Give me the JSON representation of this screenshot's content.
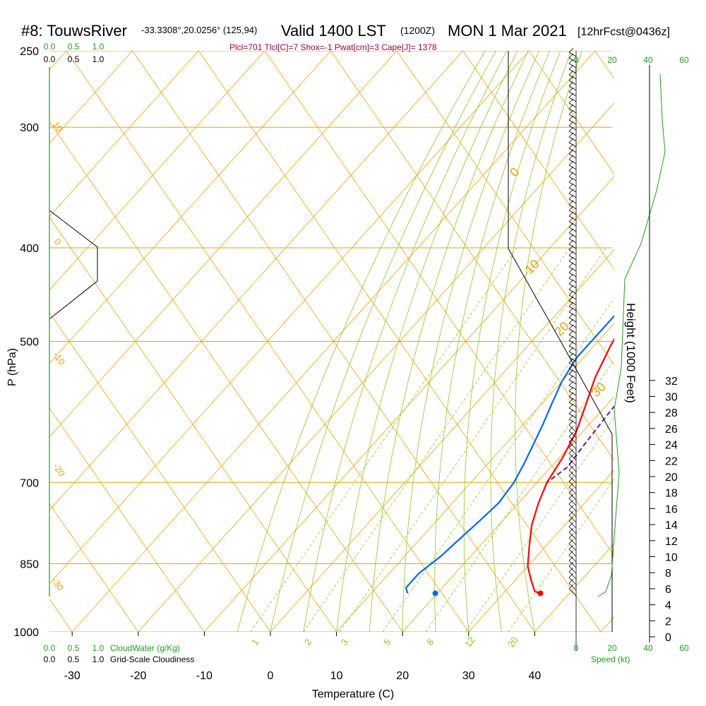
{
  "header": {
    "title_station": "#8: TouwsRiver",
    "coords": "-33.3308°,20.0256° (125,94)",
    "valid": "Valid 1400 LST",
    "zulu": "(1200Z)",
    "date": "MON 1 Mar 2021",
    "forecast": "[12hrFcst@0436z]",
    "params": "Plcl=701 Tlcl[C]=7 Shox=-1 Pwat[cm]=3 Cape[J]= 1378"
  },
  "labels": {
    "cloudwater": "CloudWater (g/Kg)",
    "cloudiness": "Grid-Scale Cloudiness",
    "speed": "Speed (kt)"
  },
  "chart_data": {
    "type": "line",
    "title": "",
    "xlabel": "Temperature (C)",
    "ylabel": "P (hPa)",
    "y2label": "Height (1000 Feet)",
    "xlim": [
      -35,
      52
    ],
    "x_ticks": [
      "-30",
      "-20",
      "-10",
      "0",
      "10",
      "20",
      "30",
      "40"
    ],
    "p_ticks": [
      "250",
      "300",
      "400",
      "500",
      "700",
      "850",
      "1000"
    ],
    "height_ticks": [
      "0",
      "2",
      "4",
      "6",
      "8",
      "10",
      "12",
      "14",
      "16",
      "18",
      "20",
      "22",
      "24",
      "26",
      "28",
      "30",
      "32"
    ],
    "cw_ticks": [
      "0.0",
      "0.5",
      "1.0"
    ],
    "cloud_ticks": [
      "0.0",
      "0.5",
      "1.0"
    ],
    "speed_ticks": [
      "0",
      "20",
      "40",
      "60"
    ],
    "mixing_ratio_labels": [
      "1",
      "2",
      "3",
      "5",
      "8",
      "12",
      "20"
    ],
    "isotherm_labels": [
      "0",
      "10",
      "20",
      "30",
      "10",
      "0",
      "-10",
      "-20",
      "-30"
    ],
    "series": [
      {
        "name": "Temperature",
        "color": "#ff0000",
        "points": [
          [
            1.5,
            266
          ],
          [
            1,
            290
          ],
          [
            1.5,
            310
          ],
          [
            3,
            335
          ],
          [
            5,
            360
          ],
          [
            6.5,
            385
          ],
          [
            8,
            410
          ],
          [
            9.5,
            440
          ],
          [
            11,
            470
          ],
          [
            12.5,
            505
          ],
          [
            14.5,
            545
          ],
          [
            17,
            585
          ],
          [
            19,
            620
          ],
          [
            20.5,
            660
          ],
          [
            21.5,
            700
          ],
          [
            23,
            735
          ],
          [
            25,
            775
          ],
          [
            27.5,
            815
          ],
          [
            30,
            855
          ],
          [
            32.5,
            885
          ],
          [
            34.5,
            908
          ],
          [
            35.5,
            912
          ]
        ]
      },
      {
        "name": "Dewpoint",
        "color": "#0066ff",
        "points": [
          [
            -14.5,
            264
          ],
          [
            -8,
            283
          ],
          [
            -3.5,
            305
          ],
          [
            -1.5,
            325
          ],
          [
            0,
            345
          ],
          [
            1.5,
            370
          ],
          [
            4,
            395
          ],
          [
            6.5,
            420
          ],
          [
            8.5,
            445
          ],
          [
            9,
            470
          ],
          [
            9,
            495
          ],
          [
            9,
            520
          ],
          [
            10,
            550
          ],
          [
            11.5,
            580
          ],
          [
            13,
            610
          ],
          [
            14.5,
            645
          ],
          [
            15.5,
            670
          ],
          [
            16.5,
            700
          ],
          [
            17,
            735
          ],
          [
            16.5,
            770
          ],
          [
            16,
            800
          ],
          [
            15.5,
            835
          ],
          [
            14.5,
            870
          ],
          [
            14.5,
            900
          ],
          [
            15.5,
            912
          ]
        ]
      },
      {
        "name": "Parcel",
        "color": "#7a1c5a",
        "points": [
          [
            4.5,
            265
          ],
          [
            6.5,
            290
          ],
          [
            9,
            320
          ],
          [
            11.5,
            350
          ],
          [
            14,
            380
          ],
          [
            16,
            410
          ],
          [
            17.5,
            440
          ],
          [
            19,
            470
          ],
          [
            20,
            500
          ],
          [
            20.5,
            530
          ],
          [
            21,
            560
          ],
          [
            21.5,
            600
          ],
          [
            22,
            640
          ],
          [
            22.5,
            675
          ],
          [
            21.5,
            701
          ]
        ]
      }
    ],
    "surface_points": [
      {
        "name": "dewpoint-2m",
        "value": 19.7,
        "p": 912,
        "color": "#0066ff"
      },
      {
        "name": "temperature-2m",
        "value": 35.6,
        "p": 912,
        "color": "#ff0000"
      }
    ],
    "grid": true
  }
}
